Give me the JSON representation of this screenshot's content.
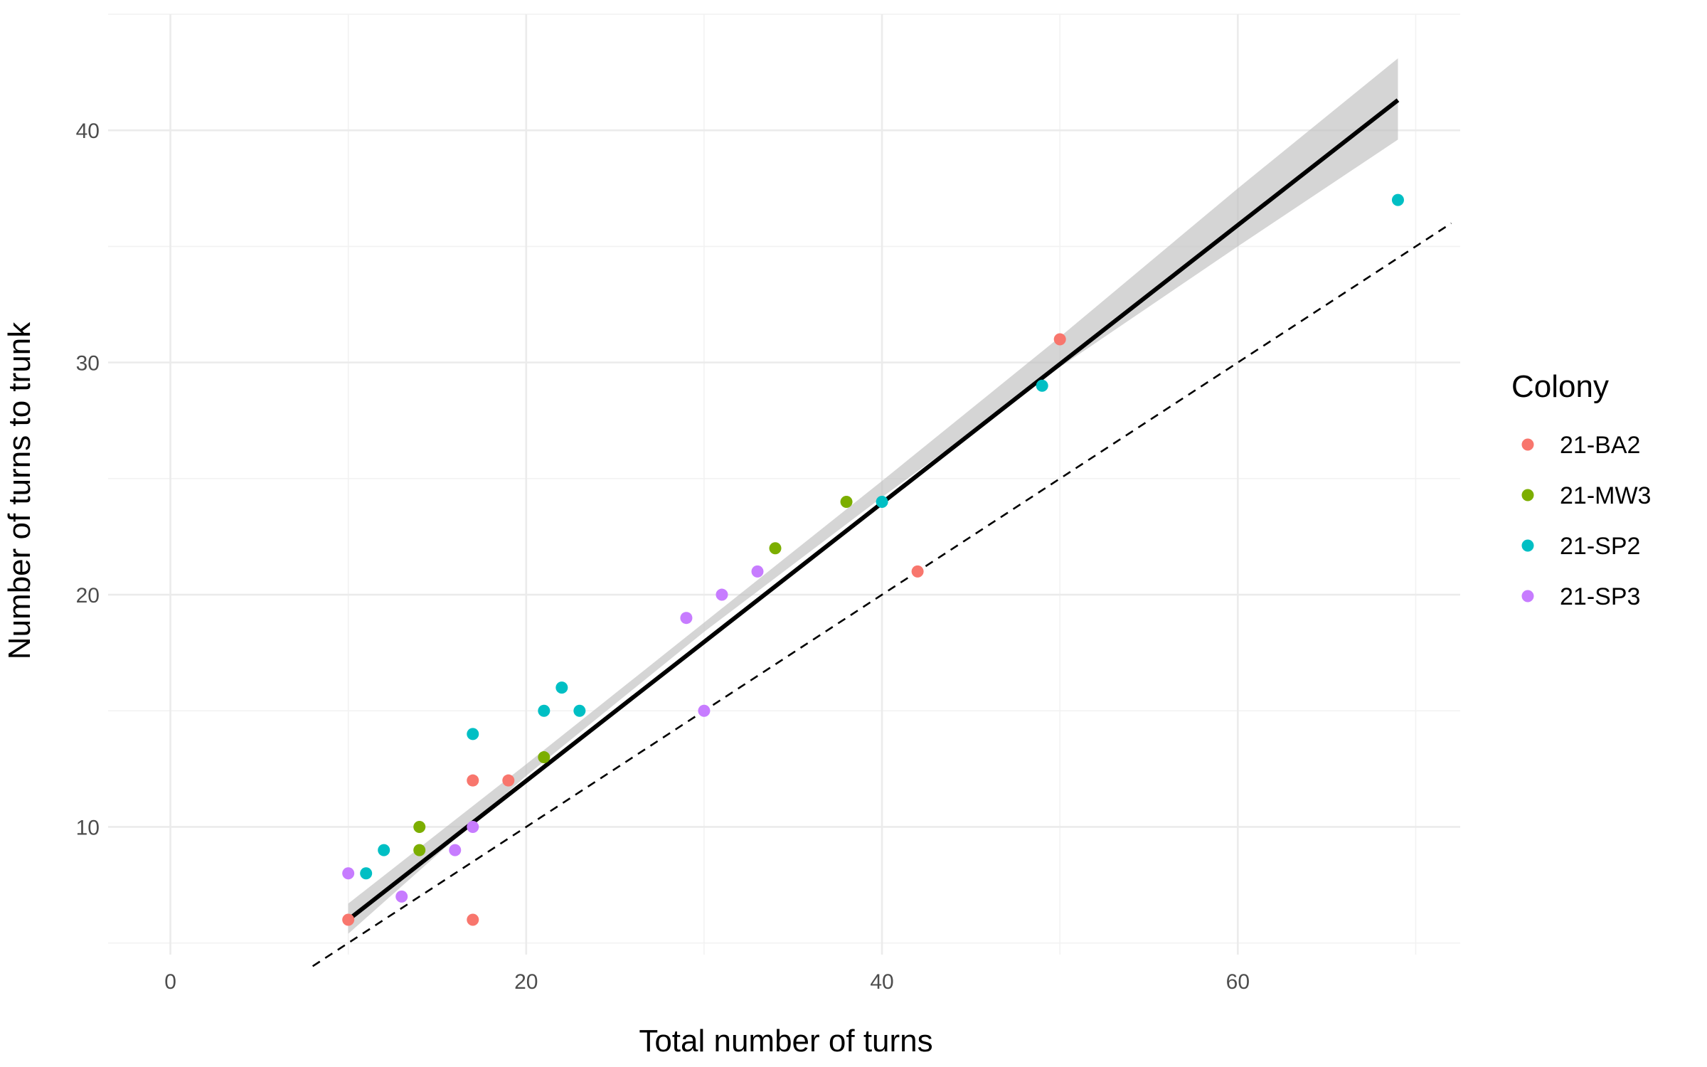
{
  "chart_data": {
    "type": "scatter",
    "xlabel": "Total number of turns",
    "ylabel": "Number of turns to trunk",
    "xlim": [
      -3.5,
      72.5
    ],
    "ylim": [
      4.5,
      45
    ],
    "x_ticks": [
      0,
      20,
      40,
      60
    ],
    "y_ticks": [
      10,
      20,
      30,
      40
    ],
    "x_tick_labels": [
      "0",
      "20",
      "40",
      "60"
    ],
    "y_tick_labels": [
      "10",
      "20",
      "30",
      "40"
    ],
    "grid": true,
    "legend": {
      "title": "Colony",
      "placement": "right"
    },
    "series": [
      {
        "name": "21-BA2",
        "color": "#F8766D",
        "points": [
          [
            10,
            6
          ],
          [
            17,
            6
          ],
          [
            17,
            12
          ],
          [
            19,
            12
          ],
          [
            42,
            21
          ],
          [
            50,
            31
          ]
        ]
      },
      {
        "name": "21-MW3",
        "color": "#7CAE00",
        "points": [
          [
            14,
            10
          ],
          [
            14,
            9
          ],
          [
            21,
            13
          ],
          [
            34,
            22
          ],
          [
            38,
            24
          ]
        ]
      },
      {
        "name": "21-SP2",
        "color": "#00BFC4",
        "points": [
          [
            11,
            8
          ],
          [
            12,
            9
          ],
          [
            17,
            14
          ],
          [
            21,
            15
          ],
          [
            22,
            16
          ],
          [
            23,
            15
          ],
          [
            40,
            24
          ],
          [
            49,
            29
          ],
          [
            69,
            37
          ]
        ]
      },
      {
        "name": "21-SP3",
        "color": "#C77CFF",
        "points": [
          [
            10,
            8
          ],
          [
            13,
            7
          ],
          [
            16,
            9
          ],
          [
            17,
            10
          ],
          [
            29,
            19
          ],
          [
            30,
            15
          ],
          [
            31,
            20
          ],
          [
            33,
            21
          ]
        ]
      }
    ],
    "fit_line": {
      "color": "#000000",
      "x": [
        10,
        69
      ],
      "y": [
        6.0,
        41.3
      ]
    },
    "confidence_band": {
      "color": "#bebebe",
      "x": [
        10,
        20,
        30,
        40,
        50,
        60,
        69
      ],
      "lower": [
        5.4,
        12.2,
        18.4,
        24.2,
        29.8,
        35.0,
        39.6
      ],
      "upper": [
        6.7,
        12.7,
        18.8,
        24.9,
        31.1,
        37.5,
        43.1
      ]
    },
    "reference_line": {
      "style": "dashed",
      "color": "#000000",
      "x": [
        8,
        72
      ],
      "y": [
        4,
        36
      ]
    }
  }
}
